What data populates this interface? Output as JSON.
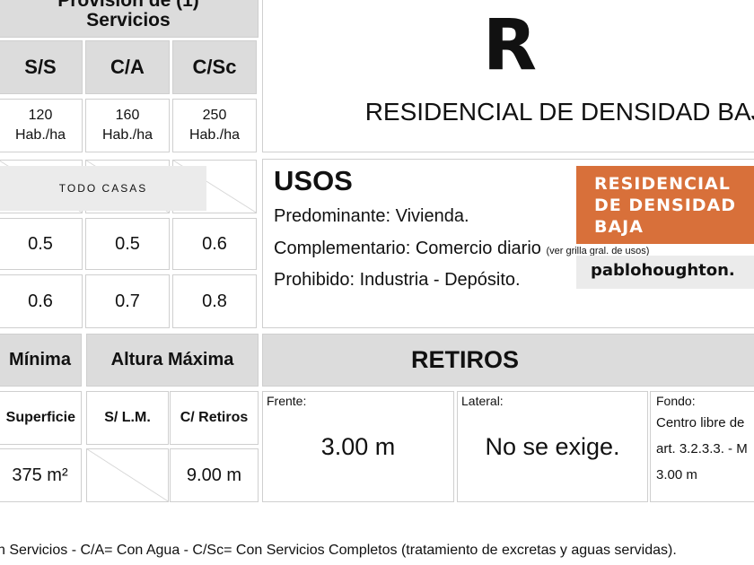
{
  "provision": {
    "title": "Provisión de (1) Servicios",
    "cols": [
      "S/S",
      "C/A",
      "C/Sc"
    ],
    "density": [
      {
        "n": "120",
        "u": "Hab./ha"
      },
      {
        "n": "160",
        "u": "Hab./ha"
      },
      {
        "n": "250",
        "u": "Hab./ha"
      }
    ],
    "row1": [
      "0.5",
      "0.5",
      "0.6"
    ],
    "row2": [
      "0.6",
      "0.7",
      "0.8"
    ]
  },
  "overlay_todo": "TODO CASAS",
  "zone": {
    "code": "R",
    "name": "RESIDENCIAL DE DENSIDAD BAJA"
  },
  "usos": {
    "title": "USOS",
    "predominante": "Predominante: Vivienda.",
    "complementario": "Complementario: Comercio diario",
    "complementario_note": "(ver grilla gral. de usos)",
    "prohibido": "Prohibido: Industria - Depósito."
  },
  "badge": {
    "text": "RESIDENCIAL DE DENSIDAD BAJA",
    "color": "#d8703a",
    "site": "pablohoughton."
  },
  "parcela": {
    "header": "Mínima",
    "sub": "Superficie",
    "value": "375 m²"
  },
  "altura": {
    "header": "Altura Máxima",
    "cols": [
      "S/ L.M.",
      "C/ Retiros"
    ],
    "c_retiros": "9.00 m"
  },
  "retiros": {
    "header": "RETIROS",
    "frente_label": "Frente:",
    "frente": "3.00 m",
    "lateral_label": "Lateral:",
    "lateral": "No se exige.",
    "fondo_label": "Fondo:",
    "fondo_lines": [
      "Centro libre de",
      "art. 3.2.3.3. - M",
      "3.00 m"
    ]
  },
  "footnote": "n Servicios - C/A= Con Agua - C/Sc= Con Servicios Completos (tratamiento de excretas y aguas servidas)."
}
